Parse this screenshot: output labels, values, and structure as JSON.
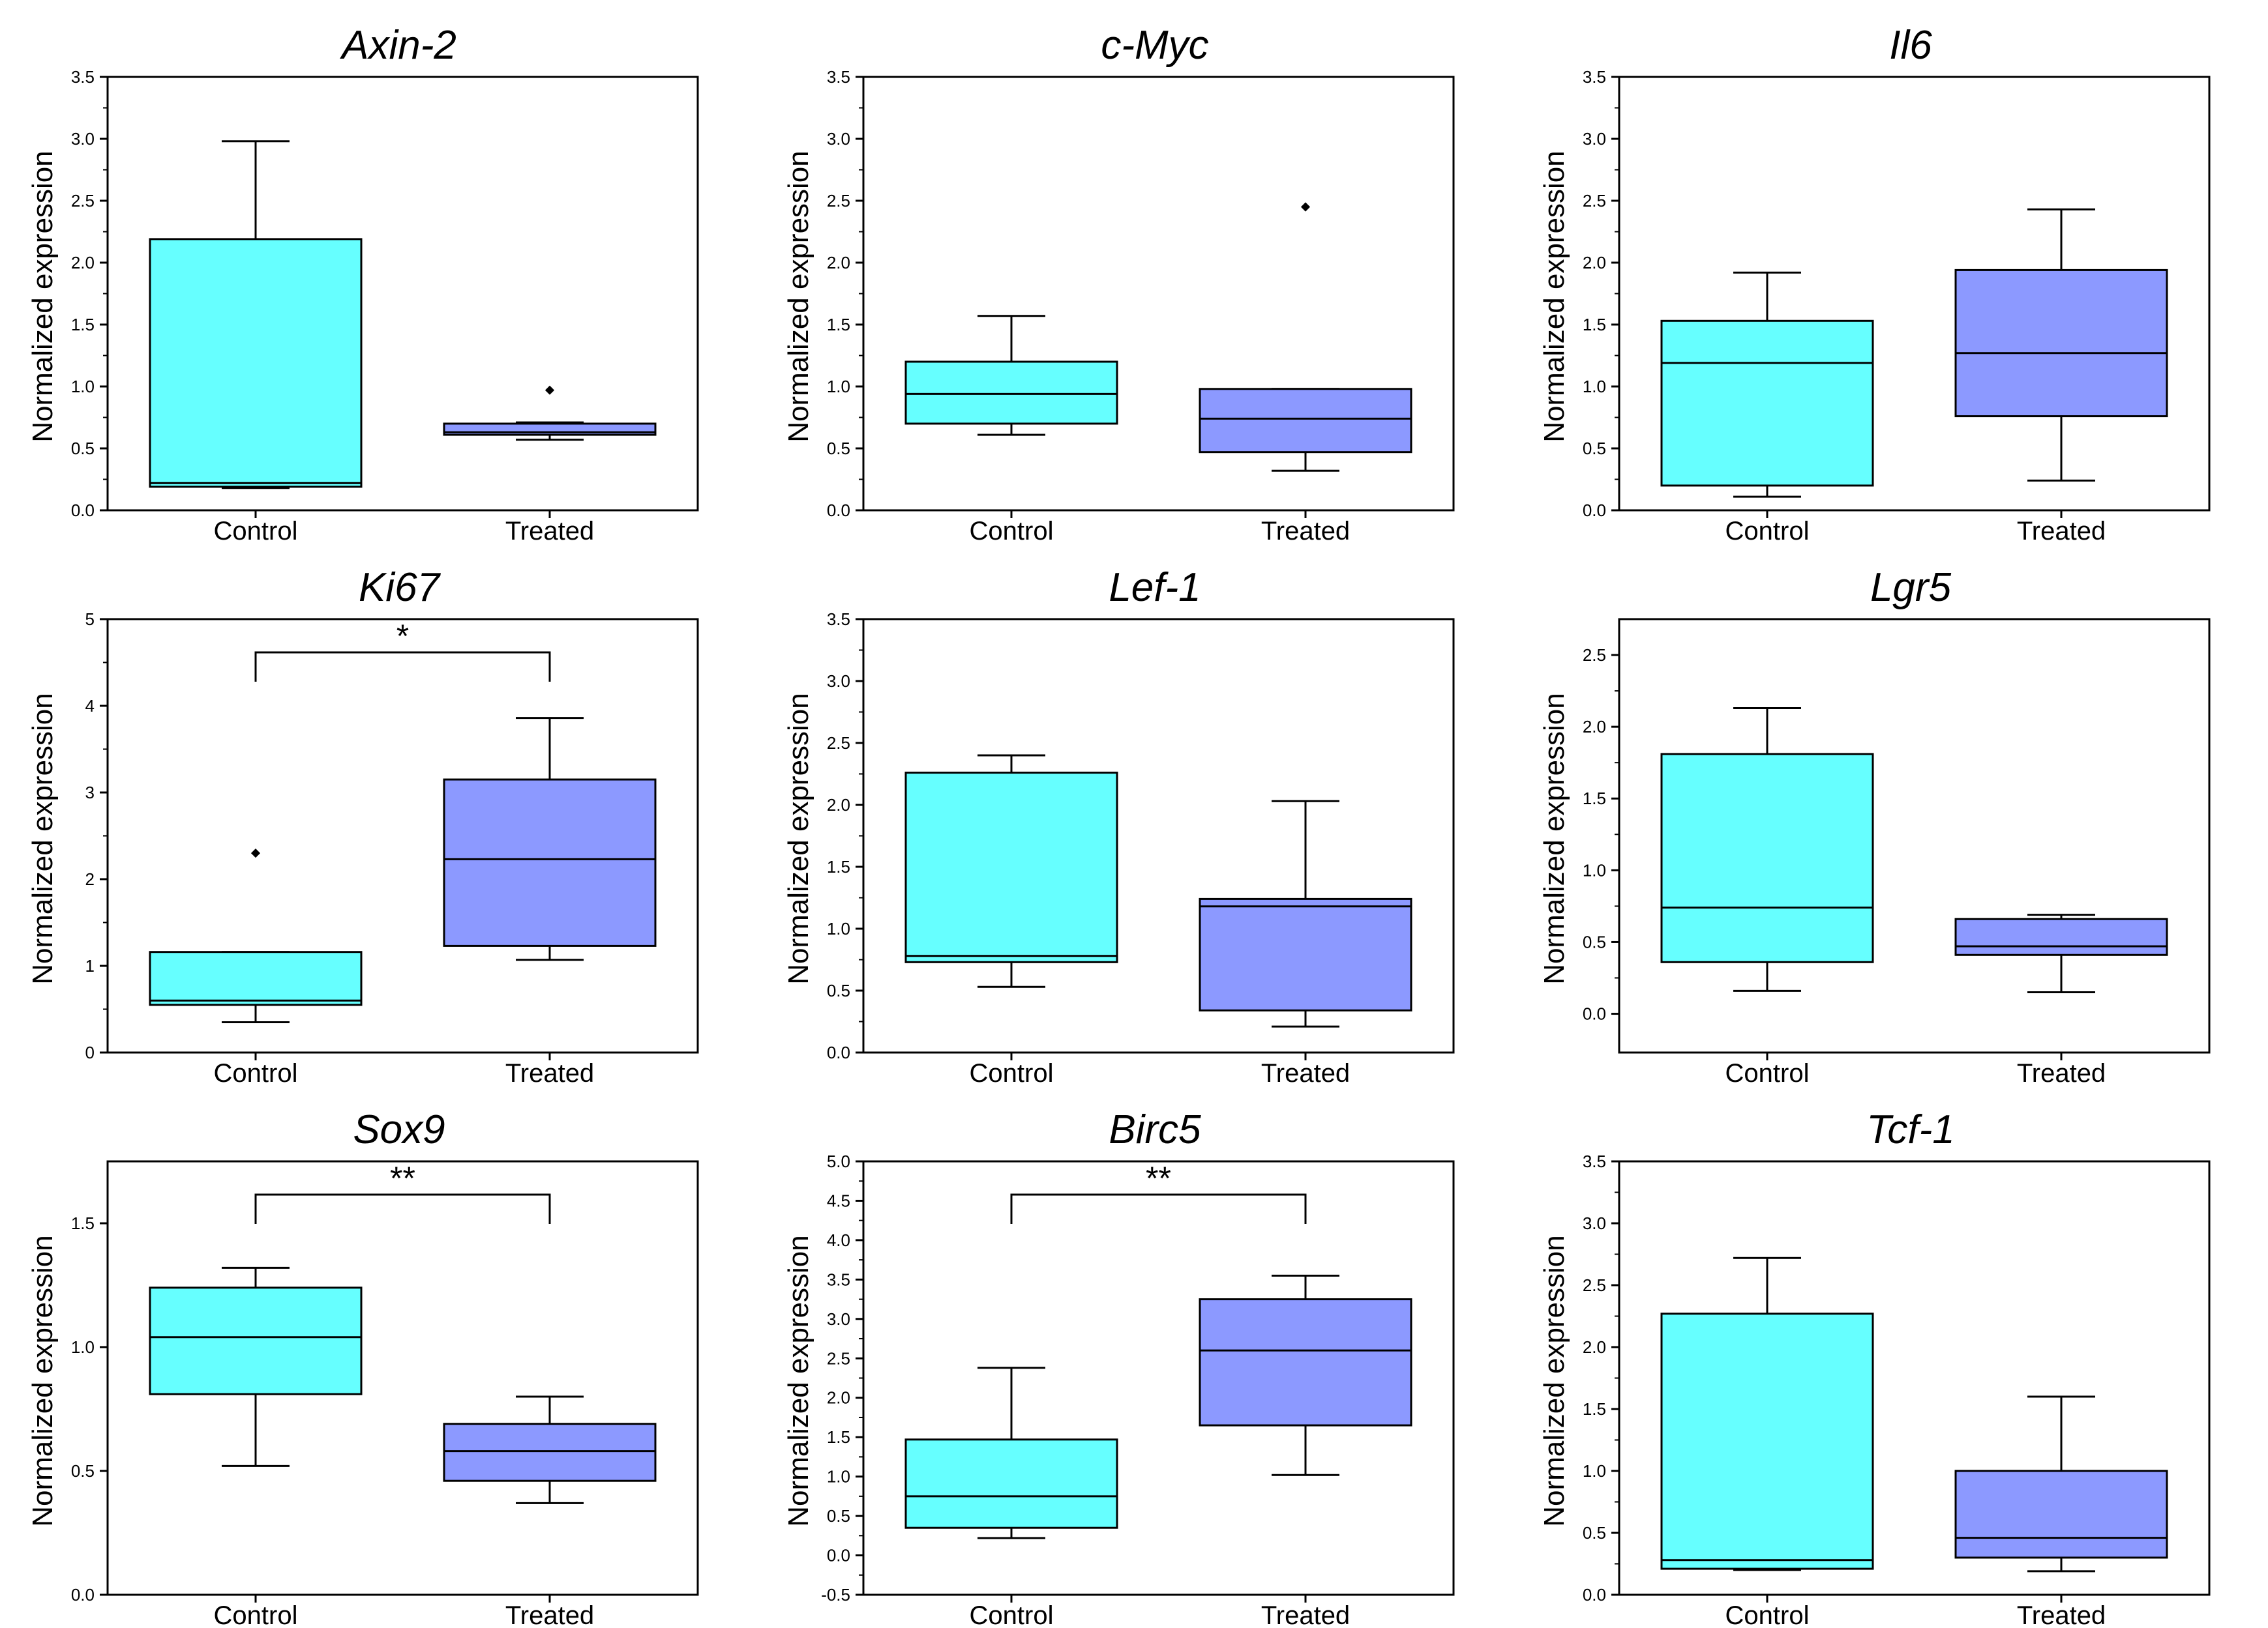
{
  "colors": {
    "control": "#66ffff",
    "treated": "#8c99ff",
    "line": "#000000"
  },
  "chart_data": [
    {
      "type": "box",
      "title": "Axin-2",
      "ylabel": "Normalized expression",
      "categories": [
        "Control",
        "Treated"
      ],
      "ylim": [
        0,
        3.5
      ],
      "ticks": [
        "0.0",
        "0.5",
        "1.0",
        "1.5",
        "2.0",
        "2.5",
        "3.0",
        "3.5"
      ],
      "minor_ticks": true,
      "boxes": [
        {
          "whisker_low": 0.18,
          "q1": 0.19,
          "median": 0.22,
          "q3": 2.19,
          "whisker_high": 2.98,
          "outliers": []
        },
        {
          "whisker_low": 0.57,
          "q1": 0.61,
          "median": 0.63,
          "q3": 0.7,
          "whisker_high": 0.71,
          "outliers": [
            0.97
          ]
        }
      ]
    },
    {
      "type": "box",
      "title": "c-Myc",
      "ylabel": "Normalized expression",
      "categories": [
        "Control",
        "Treated"
      ],
      "ylim": [
        0,
        3.5
      ],
      "ticks": [
        "0.0",
        "0.5",
        "1.0",
        "1.5",
        "2.0",
        "2.5",
        "3.0",
        "3.5"
      ],
      "minor_ticks": true,
      "boxes": [
        {
          "whisker_low": 0.61,
          "q1": 0.7,
          "median": 0.94,
          "q3": 1.2,
          "whisker_high": 1.57,
          "outliers": []
        },
        {
          "whisker_low": 0.32,
          "q1": 0.47,
          "median": 0.74,
          "q3": 0.98,
          "whisker_high": 0.98,
          "outliers": [
            2.45
          ]
        }
      ]
    },
    {
      "type": "box",
      "title": "Il6",
      "ylabel": "Normalized expression",
      "categories": [
        "Control",
        "Treated"
      ],
      "ylim": [
        0,
        3.5
      ],
      "ticks": [
        "0.0",
        "0.5",
        "1.0",
        "1.5",
        "2.0",
        "2.5",
        "3.0",
        "3.5"
      ],
      "minor_ticks": true,
      "boxes": [
        {
          "whisker_low": 0.11,
          "q1": 0.2,
          "median": 1.19,
          "q3": 1.53,
          "whisker_high": 1.92,
          "outliers": []
        },
        {
          "whisker_low": 0.24,
          "q1": 0.76,
          "median": 1.27,
          "q3": 1.94,
          "whisker_high": 2.43,
          "outliers": []
        }
      ]
    },
    {
      "type": "box",
      "title": "Ki67",
      "ylabel": "Normalized expression",
      "categories": [
        "Control",
        "Treated"
      ],
      "ylim": [
        0,
        5
      ],
      "ticks": [
        "0",
        "1",
        "2",
        "3",
        "4",
        "5"
      ],
      "minor_ticks": true,
      "significance": "*",
      "boxes": [
        {
          "whisker_low": 0.35,
          "q1": 0.55,
          "median": 0.6,
          "q3": 1.16,
          "whisker_high": 1.16,
          "outliers": [
            2.3
          ]
        },
        {
          "whisker_low": 1.07,
          "q1": 1.23,
          "median": 2.23,
          "q3": 3.15,
          "whisker_high": 3.86,
          "outliers": []
        }
      ]
    },
    {
      "type": "box",
      "title": "Lef-1",
      "ylabel": "Normalized expression",
      "categories": [
        "Control",
        "Treated"
      ],
      "ylim": [
        0,
        3.5
      ],
      "ticks": [
        "0.0",
        "0.5",
        "1.0",
        "1.5",
        "2.0",
        "2.5",
        "3.0",
        "3.5"
      ],
      "minor_ticks": true,
      "boxes": [
        {
          "whisker_low": 0.53,
          "q1": 0.73,
          "median": 0.78,
          "q3": 2.26,
          "whisker_high": 2.4,
          "outliers": []
        },
        {
          "whisker_low": 0.21,
          "q1": 0.34,
          "median": 1.18,
          "q3": 1.24,
          "whisker_high": 2.03,
          "outliers": []
        }
      ]
    },
    {
      "type": "box",
      "title": "Lgr5",
      "ylabel": "Normalized expression",
      "categories": [
        "Control",
        "Treated"
      ],
      "ylim": [
        -0.27,
        2.75
      ],
      "ticks": [
        "0.0",
        "0.5",
        "1.0",
        "1.5",
        "2.0",
        "2.5"
      ],
      "minor_ticks": true,
      "boxes": [
        {
          "whisker_low": 0.16,
          "q1": 0.36,
          "median": 0.74,
          "q3": 1.81,
          "whisker_high": 2.13,
          "outliers": []
        },
        {
          "whisker_low": 0.15,
          "q1": 0.41,
          "median": 0.47,
          "q3": 0.66,
          "whisker_high": 0.69,
          "outliers": []
        }
      ]
    },
    {
      "type": "box",
      "title": "Sox9",
      "ylabel": "Normalized expression",
      "categories": [
        "Control",
        "Treated"
      ],
      "ylim": [
        0,
        1.75
      ],
      "ticks": [
        "0.0",
        "0.5",
        "1.0",
        "1.5"
      ],
      "minor_ticks": false,
      "significance": "**",
      "boxes": [
        {
          "whisker_low": 0.52,
          "q1": 0.81,
          "median": 1.04,
          "q3": 1.24,
          "whisker_high": 1.32,
          "outliers": []
        },
        {
          "whisker_low": 0.37,
          "q1": 0.46,
          "median": 0.58,
          "q3": 0.69,
          "whisker_high": 0.8,
          "outliers": []
        }
      ]
    },
    {
      "type": "box",
      "title": "Birc5",
      "ylabel": "Normalized expression",
      "categories": [
        "Control",
        "Treated"
      ],
      "ylim": [
        -0.5,
        5.0
      ],
      "ticks": [
        "-0.5",
        "0.0",
        "0.5",
        "1.0",
        "1.5",
        "2.0",
        "2.5",
        "3.0",
        "3.5",
        "4.0",
        "4.5",
        "5.0"
      ],
      "minor_ticks": true,
      "significance": "**",
      "boxes": [
        {
          "whisker_low": 0.22,
          "q1": 0.35,
          "median": 0.75,
          "q3": 1.47,
          "whisker_high": 2.38,
          "outliers": []
        },
        {
          "whisker_low": 1.02,
          "q1": 1.65,
          "median": 2.6,
          "q3": 3.25,
          "whisker_high": 3.55,
          "outliers": []
        }
      ]
    },
    {
      "type": "box",
      "title": "Tcf-1",
      "ylabel": "Normalized expression",
      "categories": [
        "Control",
        "Treated"
      ],
      "ylim": [
        0,
        3.5
      ],
      "ticks": [
        "0.0",
        "0.5",
        "1.0",
        "1.5",
        "2.0",
        "2.5",
        "3.0",
        "3.5"
      ],
      "minor_ticks": true,
      "boxes": [
        {
          "whisker_low": 0.2,
          "q1": 0.21,
          "median": 0.28,
          "q3": 2.27,
          "whisker_high": 2.72,
          "outliers": []
        },
        {
          "whisker_low": 0.19,
          "q1": 0.3,
          "median": 0.46,
          "q3": 1.0,
          "whisker_high": 1.6,
          "outliers": []
        }
      ]
    }
  ]
}
